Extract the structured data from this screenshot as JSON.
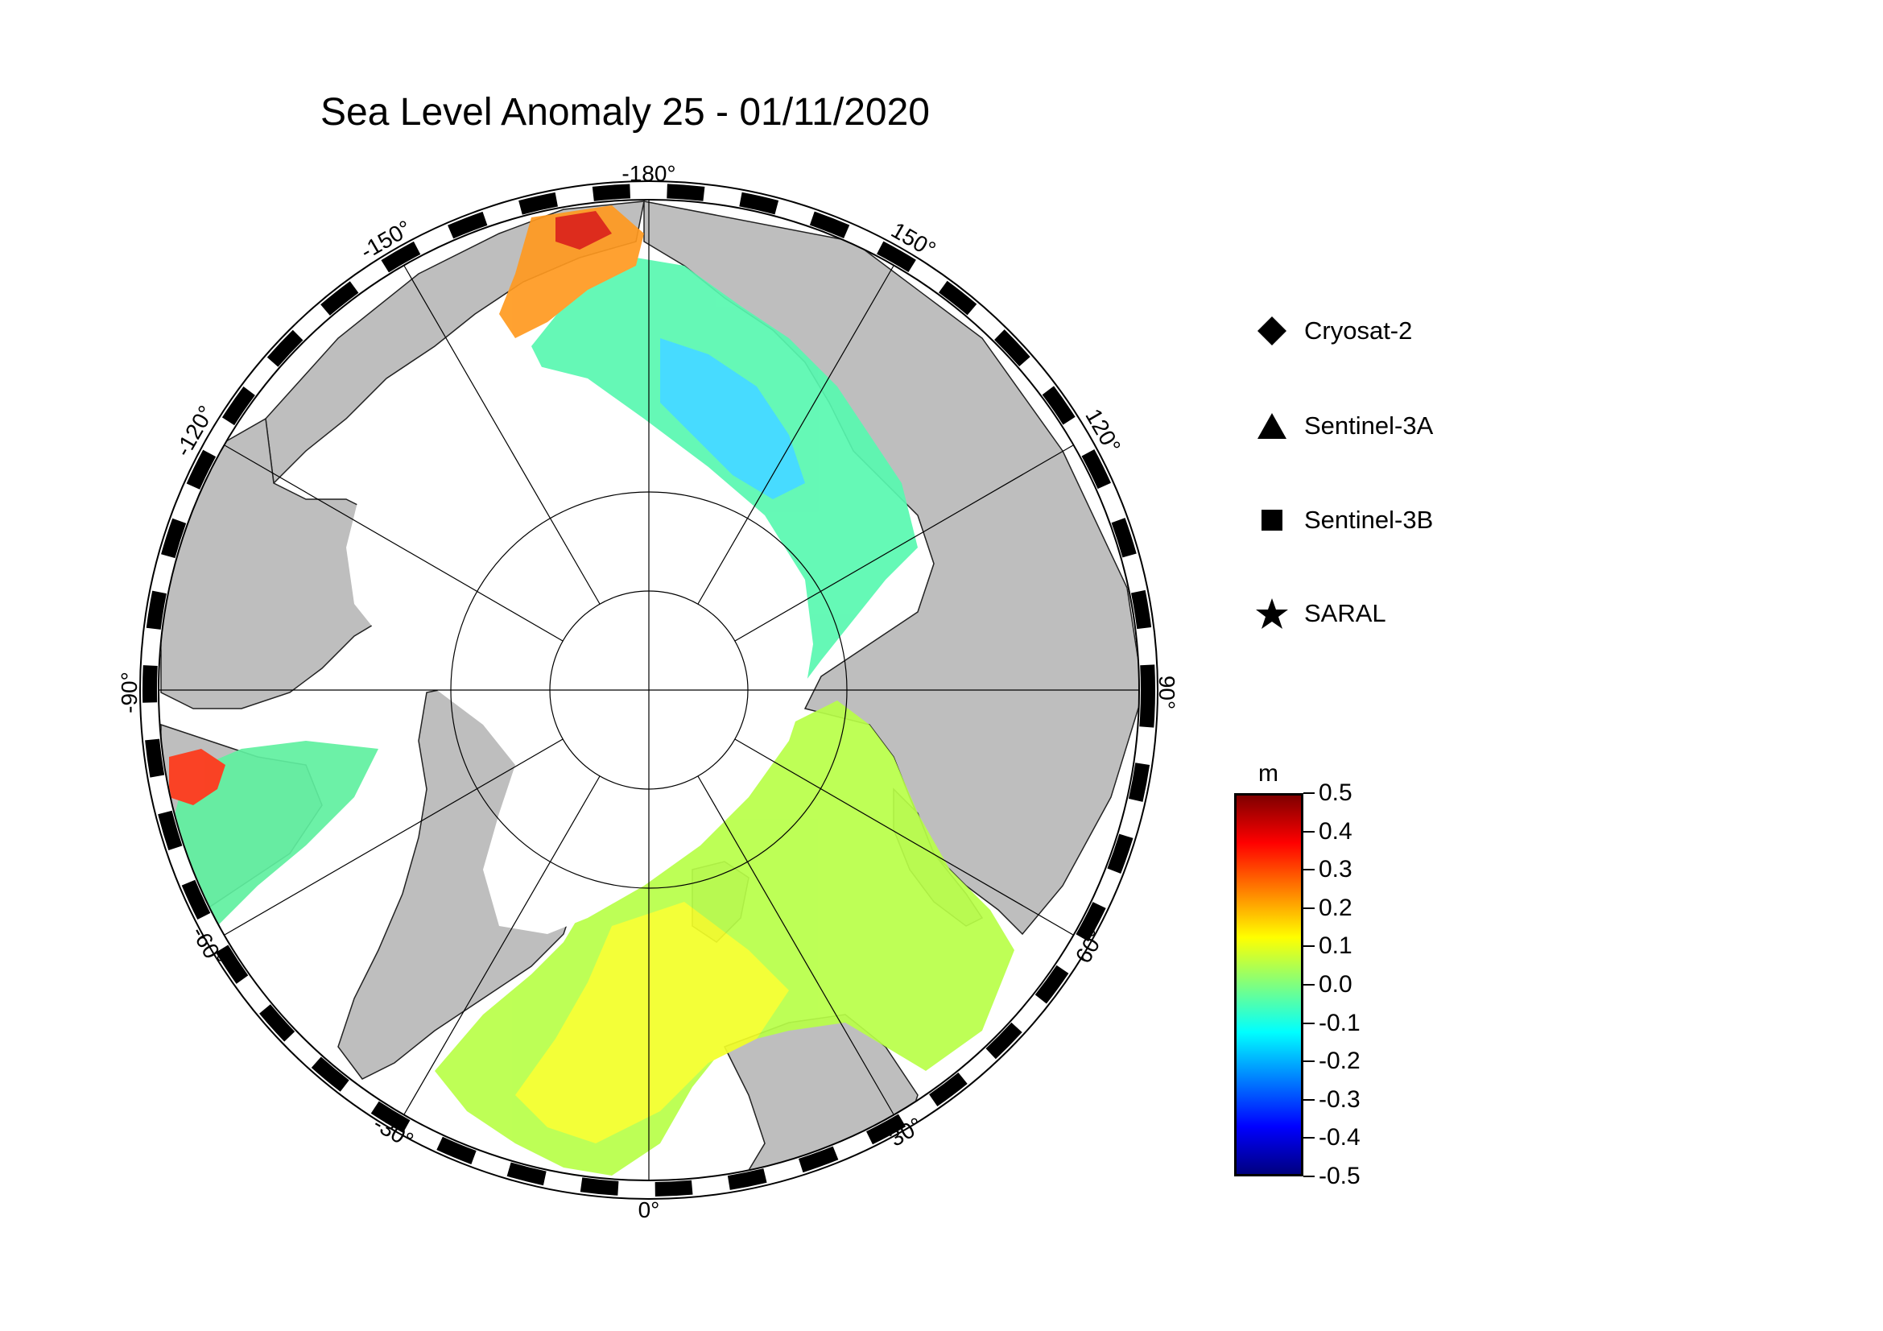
{
  "title": "Sea Level Anomaly 25 - 01/11/2020",
  "colors": {
    "land": "#bebebe",
    "ocean_nodata": "#ffffff",
    "frame": "#000000"
  },
  "longitude_labels": [
    "-180°",
    "150°",
    "120°",
    "90°",
    "60°",
    "30°",
    "0°",
    "-30°",
    "-60°",
    "-90°",
    "-120°",
    "-150°"
  ],
  "legend": {
    "items": [
      {
        "label": "Cryosat-2",
        "icon": "diamond-icon"
      },
      {
        "label": "Sentinel-3A",
        "icon": "triangle-icon"
      },
      {
        "label": "Sentinel-3B",
        "icon": "square-icon"
      },
      {
        "label": "SARAL",
        "icon": "star-icon"
      }
    ]
  },
  "colorbar": {
    "unit": "m",
    "ticks": [
      "0.5",
      "0.4",
      "0.3",
      "0.2",
      "0.1",
      "0.0",
      "-0.1",
      "-0.2",
      "-0.3",
      "-0.4",
      "-0.5"
    ],
    "range": [
      -0.5,
      0.5
    ],
    "colormap": [
      "#00007f",
      "#0000ff",
      "#007fff",
      "#00ffff",
      "#7fff7f",
      "#ffff00",
      "#ff7f00",
      "#ff0000",
      "#7f0000"
    ]
  }
}
